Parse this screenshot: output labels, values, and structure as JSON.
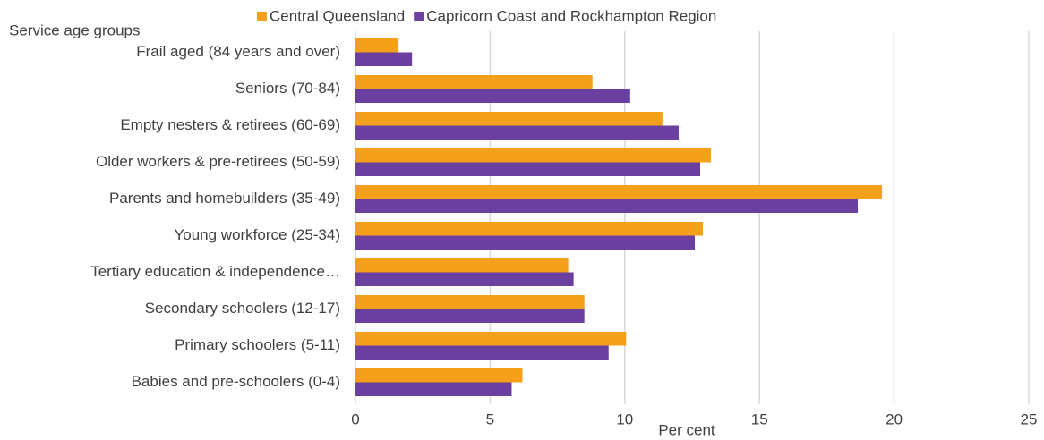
{
  "chart_data": {
    "type": "hbar",
    "y_label": "Service age groups",
    "x_label": "Per cent",
    "categories": [
      "Frail aged (84 years and over)",
      "Seniors (70-84)",
      "Empty nesters & retirees (60-69)",
      "Older workers & pre-retirees (50-59)",
      "Parents and homebuilders (35-49)",
      "Young workforce (25-34)",
      "Tertiary education & independence…",
      "Secondary schoolers (12-17)",
      "Primary schoolers (5-11)",
      "Babies and pre-schoolers (0-4)"
    ],
    "series": [
      {
        "name": "Central Queensland",
        "color": "#f5a01a",
        "values": [
          1.6,
          8.8,
          11.4,
          13.2,
          19.55,
          12.9,
          7.9,
          8.5,
          10.05,
          6.2
        ]
      },
      {
        "name": "Capricorn Coast and Rockhampton Region",
        "color": "#6a3fa0",
        "values": [
          2.1,
          10.2,
          12.0,
          12.8,
          18.65,
          12.6,
          8.1,
          8.5,
          9.4,
          5.8
        ]
      }
    ],
    "xlim": [
      0,
      25
    ],
    "xticks": [
      0,
      5,
      10,
      15,
      20,
      25
    ],
    "grid": true
  }
}
